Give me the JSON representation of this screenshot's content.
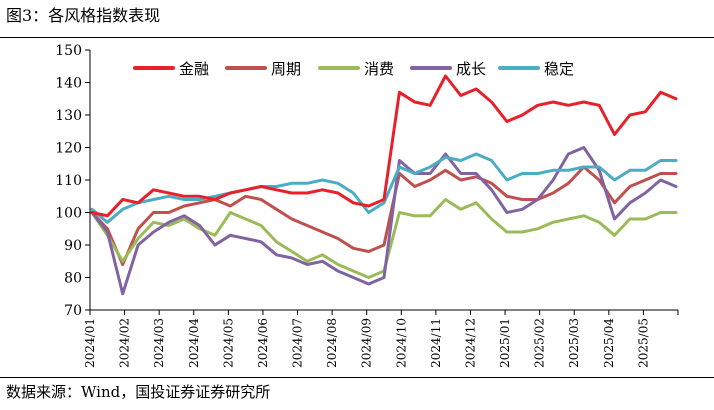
{
  "figure": {
    "title": "图3：各风格指数表现",
    "source": "数据来源：Wind，国投证券证券研究所"
  },
  "chart_data": {
    "type": "line",
    "title": "",
    "xlabel": "",
    "ylabel": "",
    "ylim": [
      70,
      150
    ],
    "yticks": [
      70,
      80,
      90,
      100,
      110,
      120,
      130,
      140,
      150
    ],
    "grid": false,
    "legend_position": "top",
    "x_ticks": [
      "2024/01",
      "2024/02",
      "2024/03",
      "2024/04",
      "2024/05",
      "2024/06",
      "2024/07",
      "2024/08",
      "2024/09",
      "2024/10",
      "2024/11",
      "2024/12",
      "2025/01",
      "2025/02",
      "2025/03",
      "2025/04",
      "2025/05"
    ],
    "x": [
      "2024/01",
      "2024/01",
      "2024/02",
      "2024/02",
      "2024/02",
      "2024/03",
      "2024/03",
      "2024/04",
      "2024/04",
      "2024/05",
      "2024/05",
      "2024/06",
      "2024/06",
      "2024/07",
      "2024/07",
      "2024/08",
      "2024/08",
      "2024/09",
      "2024/09",
      "2024/09",
      "2024/10",
      "2024/10",
      "2024/10",
      "2024/11",
      "2024/11",
      "2024/12",
      "2024/12",
      "2025/01",
      "2025/01",
      "2025/02",
      "2025/02",
      "2025/03",
      "2025/03",
      "2025/04",
      "2025/04",
      "2025/04",
      "2025/05",
      "2025/05",
      "2025/05"
    ],
    "series": [
      {
        "name": "金融",
        "color": "#e8202a",
        "values": [
          100,
          99,
          104,
          103,
          107,
          106,
          105,
          105,
          104,
          106,
          107,
          108,
          107,
          106,
          106,
          107,
          106,
          103,
          102,
          104,
          137,
          134,
          133,
          142,
          136,
          138,
          134,
          128,
          130,
          133,
          134,
          133,
          134,
          133,
          124,
          130,
          131,
          137,
          135
        ]
      },
      {
        "name": "周期",
        "color": "#c0504d",
        "values": [
          100,
          95,
          84,
          95,
          100,
          100,
          102,
          103,
          104,
          102,
          105,
          104,
          101,
          98,
          96,
          94,
          92,
          89,
          88,
          90,
          112,
          108,
          110,
          113,
          110,
          111,
          109,
          105,
          104,
          104,
          106,
          109,
          114,
          110,
          103,
          108,
          110,
          112,
          112
        ]
      },
      {
        "name": "消费",
        "color": "#9bbb59",
        "values": [
          100,
          93,
          85,
          92,
          97,
          96,
          98,
          95,
          93,
          100,
          98,
          96,
          91,
          88,
          85,
          87,
          84,
          82,
          80,
          82,
          100,
          99,
          99,
          104,
          101,
          103,
          98,
          94,
          94,
          95,
          97,
          98,
          99,
          97,
          93,
          98,
          98,
          100,
          100
        ]
      },
      {
        "name": "成长",
        "color": "#8064a2",
        "values": [
          100,
          94,
          75,
          90,
          94,
          97,
          99,
          96,
          90,
          93,
          92,
          91,
          87,
          86,
          84,
          85,
          82,
          80,
          78,
          80,
          116,
          112,
          112,
          118,
          112,
          112,
          107,
          100,
          101,
          104,
          110,
          118,
          120,
          113,
          98,
          103,
          106,
          110,
          108
        ]
      },
      {
        "name": "稳定",
        "color": "#4bacc6",
        "values": [
          101,
          97,
          101,
          103,
          104,
          105,
          104,
          104,
          105,
          106,
          107,
          108,
          108,
          109,
          109,
          110,
          109,
          106,
          100,
          103,
          114,
          112,
          114,
          117,
          116,
          118,
          116,
          110,
          112,
          112,
          113,
          113,
          114,
          114,
          110,
          113,
          113,
          116,
          116
        ]
      }
    ]
  }
}
